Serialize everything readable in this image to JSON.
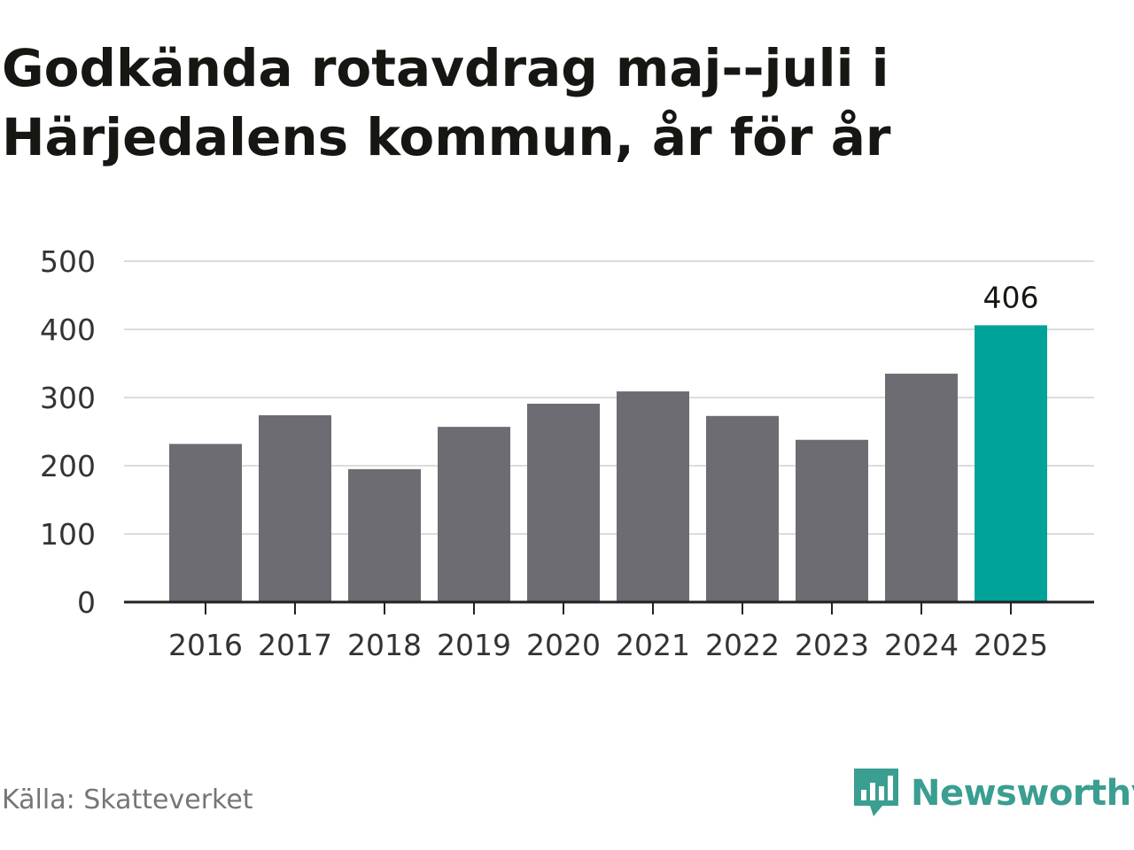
{
  "title": "Godkända rotavdrag maj--juli i Härjedalens kommun, år för år",
  "source": "Källa: Skatteverket",
  "brand": {
    "name": "Newsworthy",
    "color": "#3a9e90",
    "icon": "newsworthy-logo-icon"
  },
  "chart_data": {
    "type": "bar",
    "categories": [
      "2016",
      "2017",
      "2018",
      "2019",
      "2020",
      "2021",
      "2022",
      "2023",
      "2024",
      "2025"
    ],
    "values": [
      232,
      274,
      195,
      257,
      291,
      309,
      273,
      238,
      335,
      406
    ],
    "data_labels": [
      null,
      null,
      null,
      null,
      null,
      null,
      null,
      null,
      null,
      "406"
    ],
    "ylim": [
      0,
      500
    ],
    "yticks": [
      0,
      100,
      200,
      300,
      400,
      500
    ],
    "bar_color": "#6d6c72",
    "highlight_color": "#00a39a",
    "highlight_index": 9,
    "grid": true,
    "grid_color": "#dcdcdc"
  }
}
